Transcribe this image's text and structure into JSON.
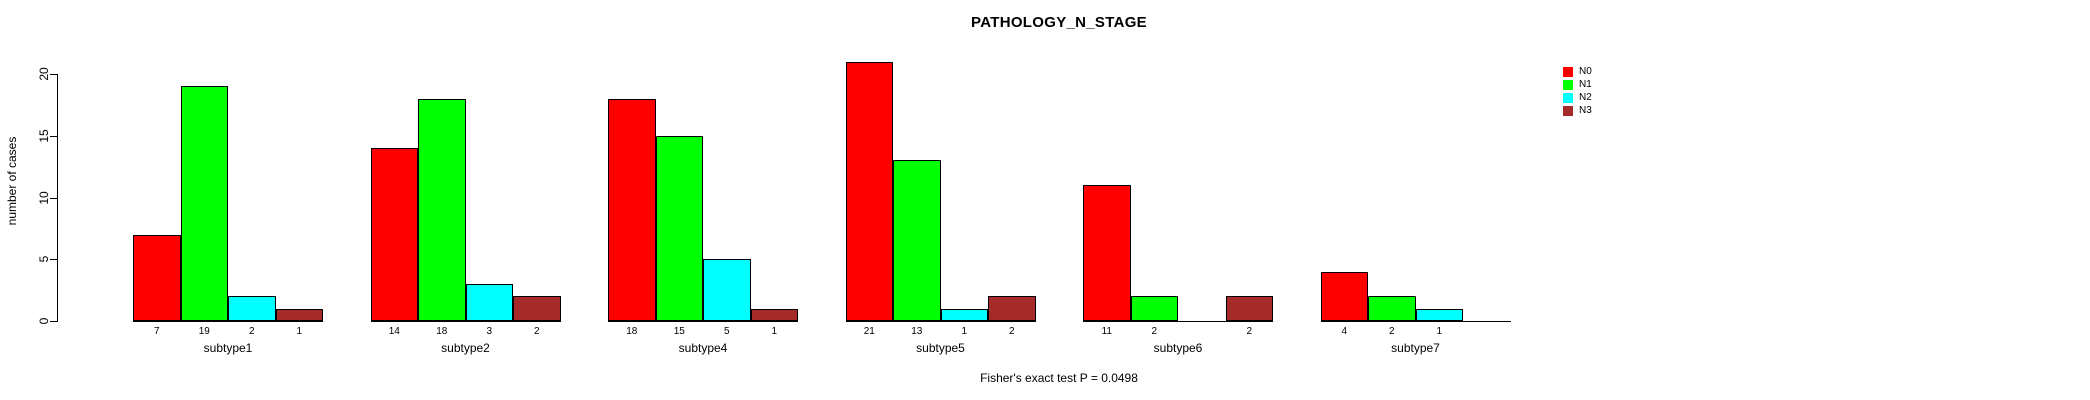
{
  "chart_data": {
    "type": "bar",
    "title": "PATHOLOGY_N_STAGE",
    "ylabel": "number of cases",
    "xlabel": "",
    "ylim": [
      0,
      20
    ],
    "yticks": [
      0,
      5,
      10,
      15,
      20
    ],
    "grid": false,
    "legend_position": "right",
    "annotation": "Fisher's exact test P = 0.0498",
    "bar_value_labels": true,
    "categories": [
      "subtype1",
      "subtype2",
      "subtype4",
      "subtype5",
      "subtype6",
      "subtype7"
    ],
    "series": [
      {
        "name": "N0",
        "color": "#FF0000",
        "values": [
          7,
          14,
          18,
          21,
          11,
          4
        ]
      },
      {
        "name": "N1",
        "color": "#00FF00",
        "values": [
          19,
          18,
          15,
          13,
          2,
          2
        ]
      },
      {
        "name": "N2",
        "color": "#00FFFF",
        "values": [
          2,
          3,
          5,
          1,
          0,
          1
        ]
      },
      {
        "name": "N3",
        "color": "#A52A2A",
        "values": [
          1,
          2,
          1,
          2,
          2,
          0
        ]
      }
    ]
  }
}
